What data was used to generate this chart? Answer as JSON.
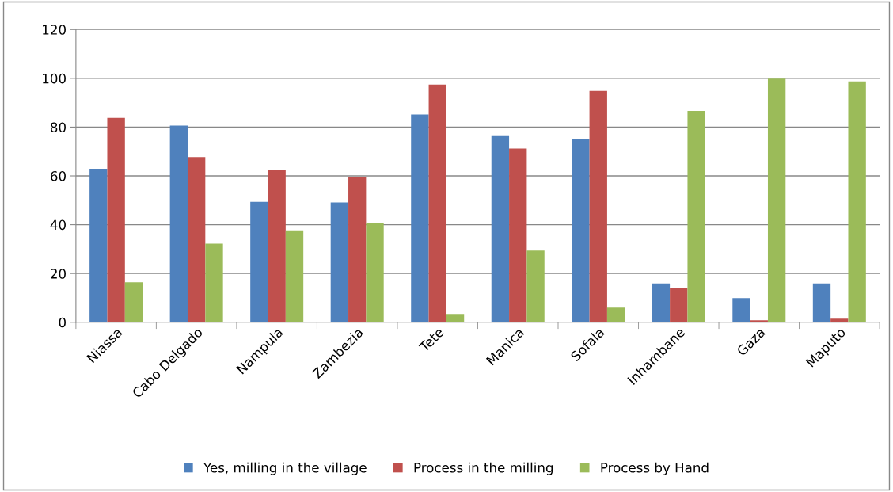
{
  "chart_data": {
    "type": "bar",
    "categories": [
      "Niassa",
      "Cabo Delgado",
      "Nampula",
      "Zambezia",
      "Tete",
      "Manica",
      "Sofala",
      "Inhambane",
      "Gaza",
      "Maputo"
    ],
    "series": [
      {
        "name": "Yes, milling in the village",
        "color": "#4f81bd",
        "values": [
          62.9,
          80.6,
          49.4,
          49.1,
          85.2,
          76.3,
          75.3,
          15.9,
          9.9,
          15.9
        ]
      },
      {
        "name": "Process in the milling",
        "color": "#c0504d",
        "values": [
          83.8,
          67.7,
          62.6,
          59.6,
          97.4,
          71.2,
          94.8,
          13.9,
          0.8,
          1.5
        ]
      },
      {
        "name": "Process by Hand",
        "color": "#9bbb59",
        "values": [
          16.4,
          32.2,
          37.7,
          40.6,
          3.4,
          29.4,
          6.0,
          86.6,
          99.9,
          98.7
        ]
      }
    ],
    "ylim": [
      0,
      120
    ],
    "yticks": [
      0,
      20,
      40,
      60,
      80,
      100,
      120
    ],
    "grid": "y",
    "legend": "bottom"
  }
}
